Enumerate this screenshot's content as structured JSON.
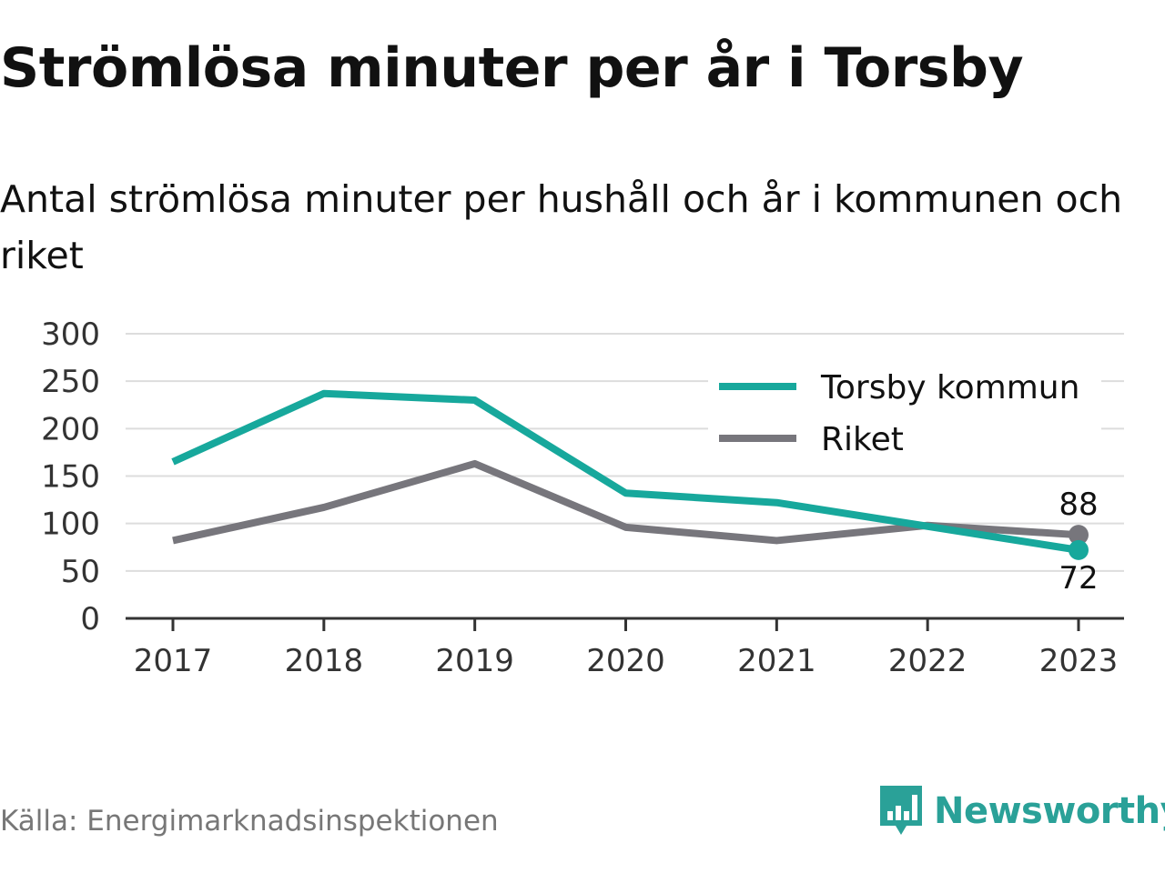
{
  "title": "Strömlösa minuter per år i Torsby",
  "subtitle": "Antal strömlösa minuter per hushåll och år i kommunen och riket",
  "source": "Källa: Energimarknadsinspektionen",
  "brand": "Newsworthy",
  "brand_icon": "newsworthy-chart-logo-icon",
  "colors": {
    "torsby": "#17a89c",
    "riket": "#77767c",
    "grid": "#dddddd",
    "axis": "#333333",
    "brand": "#2aa198"
  },
  "chart_data": {
    "type": "line",
    "categories": [
      "2017",
      "2018",
      "2019",
      "2020",
      "2021",
      "2022",
      "2023"
    ],
    "series": [
      {
        "name": "Torsby kommun",
        "values": [
          165,
          237,
          230,
          132,
          122,
          97,
          72
        ]
      },
      {
        "name": "Riket",
        "values": [
          82,
          117,
          163,
          96,
          82,
          98,
          88
        ]
      }
    ],
    "yticks": [
      0,
      50,
      100,
      150,
      200,
      250,
      300
    ],
    "ylim": [
      0,
      300
    ],
    "end_labels": [
      "72",
      "88"
    ],
    "grid": true,
    "legend": "top-right",
    "xlabel": "",
    "ylabel": ""
  }
}
